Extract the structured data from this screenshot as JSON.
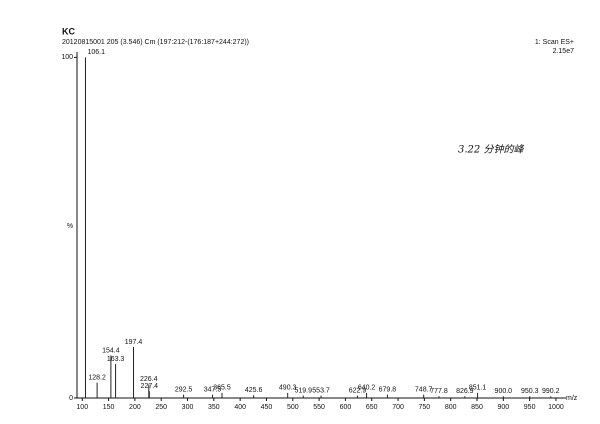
{
  "chart_data": {
    "type": "spectrum",
    "title": "KC",
    "subtitle": "20120815001 205 (3.546) Cm (197:212-(176:187+244:272))",
    "scan": "1: Scan ES+",
    "intensity": "2.15e7",
    "annotation": "3.22 分钟的峰",
    "x_label": "m/z",
    "y_label": "%",
    "color": "#222222",
    "x": [
      106.1,
      128.2,
      154.4,
      163.3,
      197.4,
      226.4,
      227.4,
      292.5,
      347.5,
      365.5,
      425.6,
      490.3,
      519.9,
      553.7,
      622.9,
      640.2,
      679.8,
      748.7,
      777.8,
      826.9,
      851.1,
      900.0,
      950.3,
      990.2
    ],
    "x_labels": [
      "106.1",
      "128.2",
      "154.4",
      "163.3",
      "197.4",
      "226.4",
      "227.4",
      "292.5",
      "347.5",
      "365.5",
      "425.6",
      "490.3",
      "519.9",
      "553.7",
      "622.9",
      "640.2",
      "679.8",
      "748.7",
      "777.8",
      "826.9",
      "851.1",
      "900.0",
      "950.3",
      "990.2"
    ],
    "values": [
      100,
      4.5,
      12.5,
      10,
      15,
      4,
      2,
      1,
      1,
      1.5,
      0.8,
      1.5,
      0.7,
      0.7,
      0.7,
      1.5,
      1,
      1,
      0.5,
      0.5,
      1.5,
      0.5,
      0.5,
      0.5
    ],
    "xlim": [
      90,
      1040
    ],
    "ylim": [
      0,
      101
    ],
    "xticks": [
      100,
      150,
      200,
      250,
      300,
      350,
      400,
      450,
      500,
      550,
      600,
      650,
      700,
      750,
      800,
      850,
      900,
      950,
      1000
    ],
    "yticks": [
      0,
      100
    ]
  }
}
